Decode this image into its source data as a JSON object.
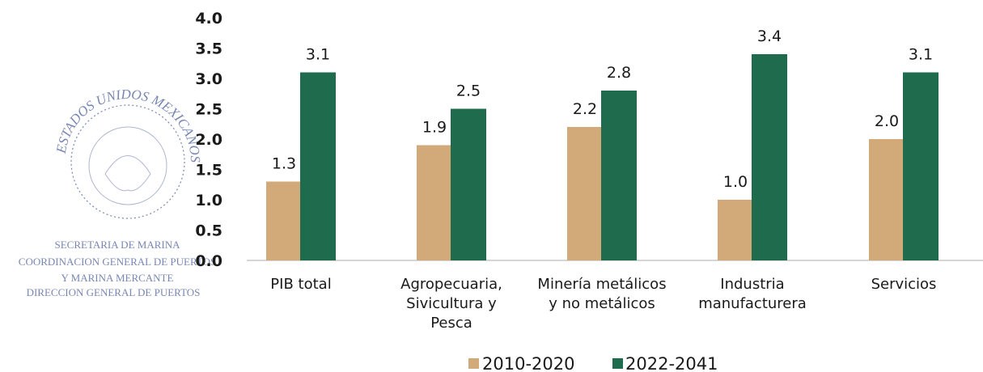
{
  "colors": {
    "series1": "#d2aa79",
    "series2": "#1f6b4e",
    "axis": "#c8c8c8",
    "stamp": "#4b5e9a"
  },
  "stamp": {
    "arc_text": "ESTADOS UNIDOS MEXICANOS",
    "lines": [
      "SECRETARIA DE MARINA",
      "COORDINACION GENERAL DE PUERTOS",
      "Y MARINA MERCANTE",
      "DIRECCION GENERAL DE PUERTOS"
    ]
  },
  "chart_data": {
    "type": "bar",
    "title": "",
    "xlabel": "",
    "ylabel": "",
    "ylim": [
      0,
      4.0
    ],
    "yticks": [
      "0.0",
      "0.5",
      "1.0",
      "1.5",
      "2.0",
      "2.5",
      "3.0",
      "3.5",
      "4.0"
    ],
    "grid": false,
    "legend_position": "bottom",
    "categories": [
      [
        "PIB total"
      ],
      [
        "Agropecuaria,",
        "Sivicultura y",
        "Pesca"
      ],
      [
        "Minería metálicos",
        "y no metálicos"
      ],
      [
        "Industria",
        "manufacturera"
      ],
      [
        "Servicios"
      ]
    ],
    "series": [
      {
        "name": "2010-2020",
        "values": [
          1.3,
          1.9,
          2.2,
          1.0,
          2.0
        ],
        "labels": [
          "1.3",
          "1.9",
          "2.2",
          "1.0",
          "2.0"
        ]
      },
      {
        "name": "2022-2041",
        "values": [
          3.1,
          2.5,
          2.8,
          3.4,
          3.1
        ],
        "labels": [
          "3.1",
          "2.5",
          "2.8",
          "3.4",
          "3.1"
        ]
      }
    ]
  }
}
